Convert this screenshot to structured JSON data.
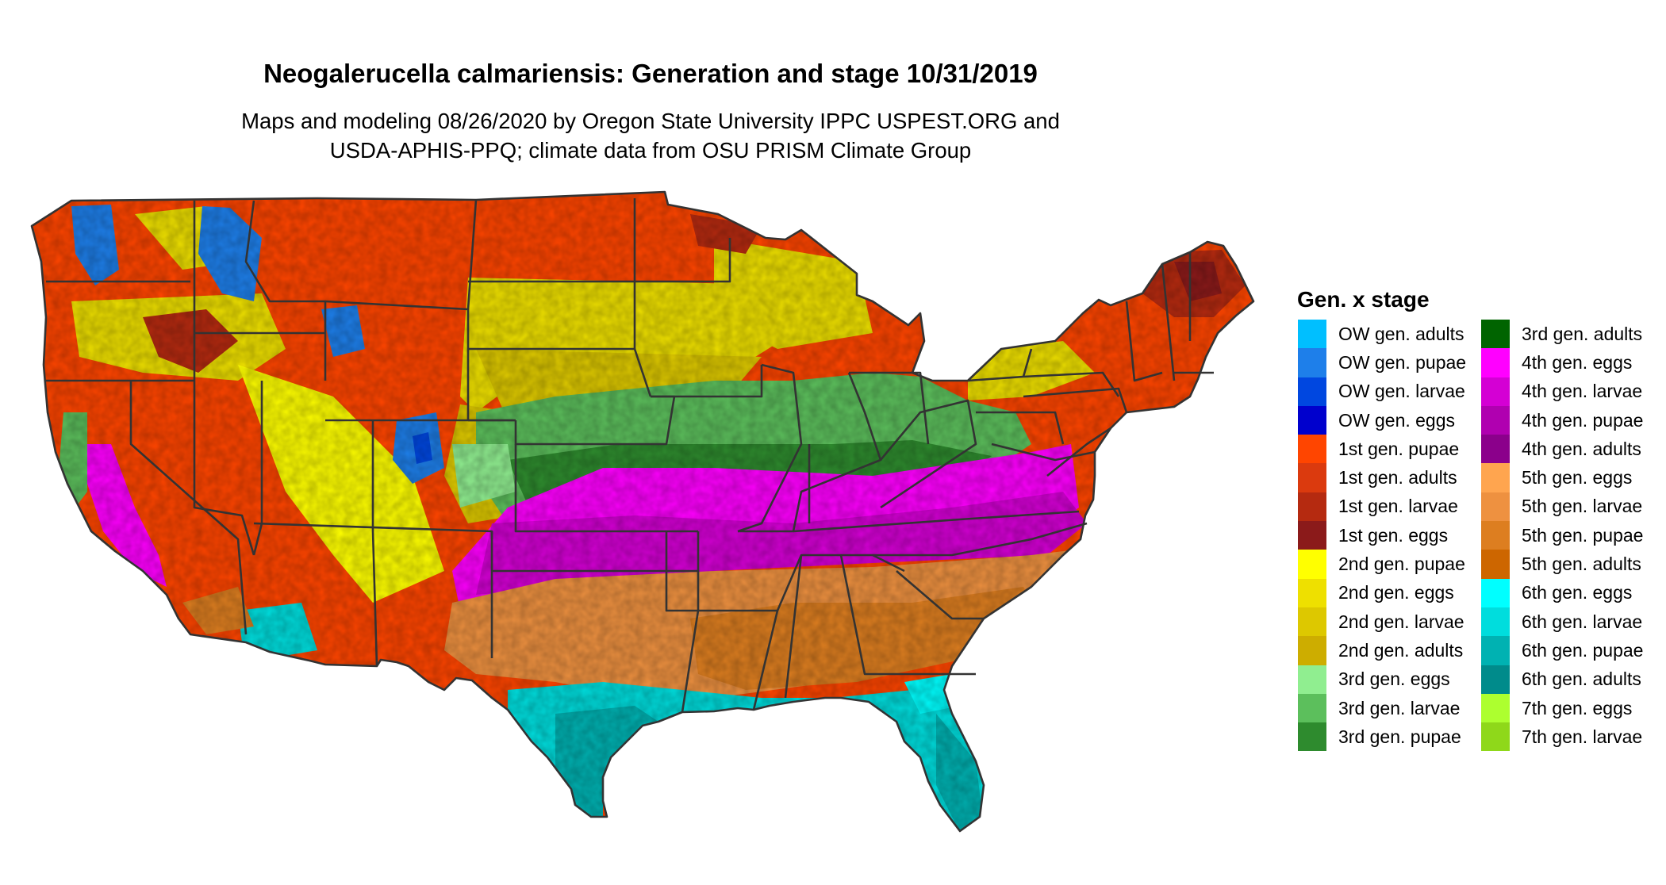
{
  "title": "Neogalerucella calmariensis: Generation and stage 10/31/2019",
  "subtitle_lines": [
    "Maps and modeling 08/26/2020 by Oregon State University IPPC USPEST.ORG and",
    "USDA-APHIS-PPQ; climate data from OSU PRISM Climate Group"
  ],
  "legend": {
    "title": "Gen. x stage",
    "col1": [
      {
        "label": "OW gen. adults",
        "color": "#00BFFF"
      },
      {
        "label": "OW gen. pupae",
        "color": "#1E7FEA"
      },
      {
        "label": "OW gen. larvae",
        "color": "#0047E0"
      },
      {
        "label": "OW gen. eggs",
        "color": "#0000CD"
      },
      {
        "label": "1st gen. pupae",
        "color": "#FF4500"
      },
      {
        "label": "1st gen. adults",
        "color": "#DB3A0E"
      },
      {
        "label": "1st gen. larvae",
        "color": "#B52A10"
      },
      {
        "label": "1st gen. eggs",
        "color": "#8B1A1A"
      },
      {
        "label": "2nd gen. pupae",
        "color": "#FFFF00"
      },
      {
        "label": "2nd gen. eggs",
        "color": "#EEE000"
      },
      {
        "label": "2nd gen. larvae",
        "color": "#DDC800"
      },
      {
        "label": "2nd gen. adults",
        "color": "#CDAD00"
      },
      {
        "label": "3rd gen. eggs",
        "color": "#90EE90"
      },
      {
        "label": "3rd gen. larvae",
        "color": "#5CBF5C"
      },
      {
        "label": "3rd gen. pupae",
        "color": "#2E8B2E"
      }
    ],
    "col2": [
      {
        "label": "3rd gen. adults",
        "color": "#006400"
      },
      {
        "label": "4th gen. eggs",
        "color": "#FF00FF"
      },
      {
        "label": "4th gen. larvae",
        "color": "#D400D4"
      },
      {
        "label": "4th gen. pupae",
        "color": "#B000B0"
      },
      {
        "label": "4th gen. adults",
        "color": "#8B008B"
      },
      {
        "label": "5th gen. eggs",
        "color": "#FFA54F"
      },
      {
        "label": "5th gen. larvae",
        "color": "#EE9140"
      },
      {
        "label": "5th gen. pupae",
        "color": "#DD7E20"
      },
      {
        "label": "5th gen. adults",
        "color": "#CD6600"
      },
      {
        "label": "6th gen. eggs",
        "color": "#00FFFF"
      },
      {
        "label": "6th gen. larvae",
        "color": "#00DDDD"
      },
      {
        "label": "6th gen. pupae",
        "color": "#00B2B2"
      },
      {
        "label": "6th gen. adults",
        "color": "#008B8B"
      },
      {
        "label": "7th gen. eggs",
        "color": "#ADFF2F"
      },
      {
        "label": "7th gen. larvae",
        "color": "#8FD81A"
      }
    ]
  },
  "map": {
    "region": "Conterminous United States",
    "border_color": "#333333",
    "background_color": "#ffffff"
  }
}
